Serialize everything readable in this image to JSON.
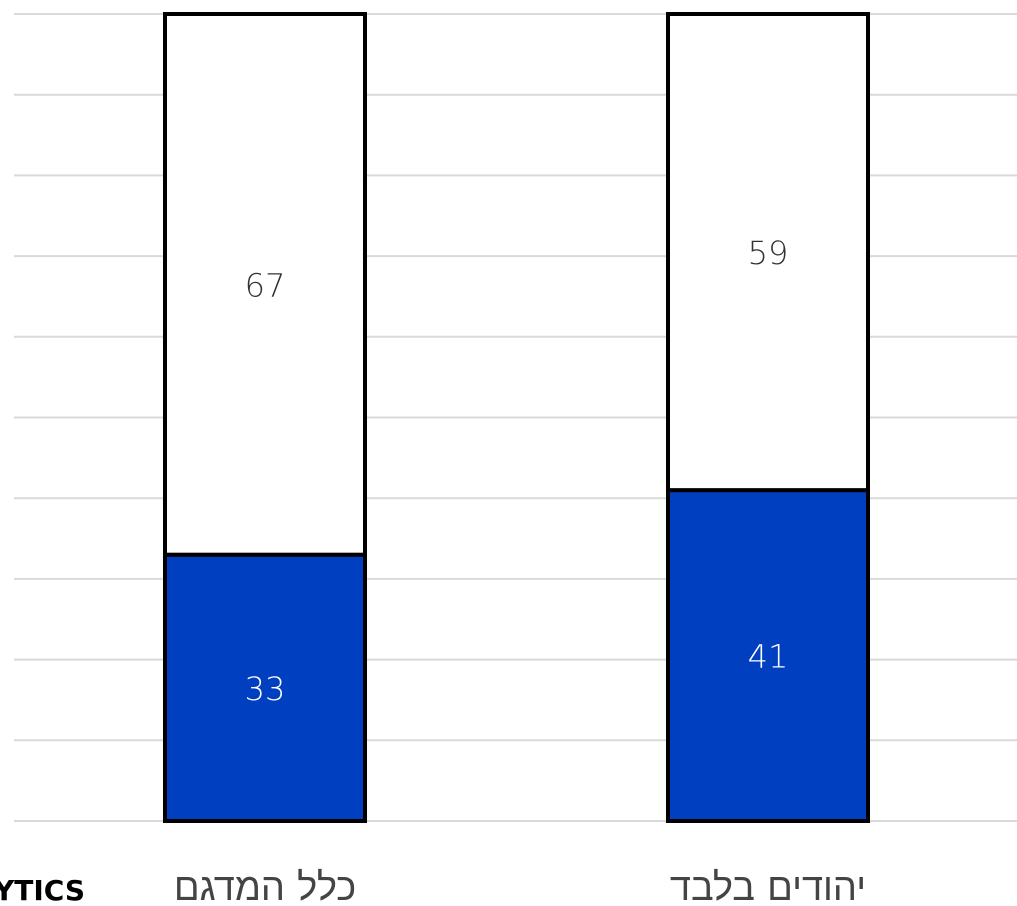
{
  "chart_data": {
    "type": "bar",
    "stacked": true,
    "categories": [
      "כלל המדגם",
      "יהודים בלבד"
    ],
    "series": [
      {
        "values": [
          33,
          41
        ],
        "color": "#003fbf"
      },
      {
        "values": [
          67,
          59
        ],
        "color": "#ffffff"
      }
    ],
    "ylim": [
      0,
      100
    ],
    "grid": true,
    "gridline_step": 10,
    "data_label_colors": [
      "#ffffff",
      "#333333"
    ]
  },
  "brand": {
    "text": "YTICS"
  }
}
